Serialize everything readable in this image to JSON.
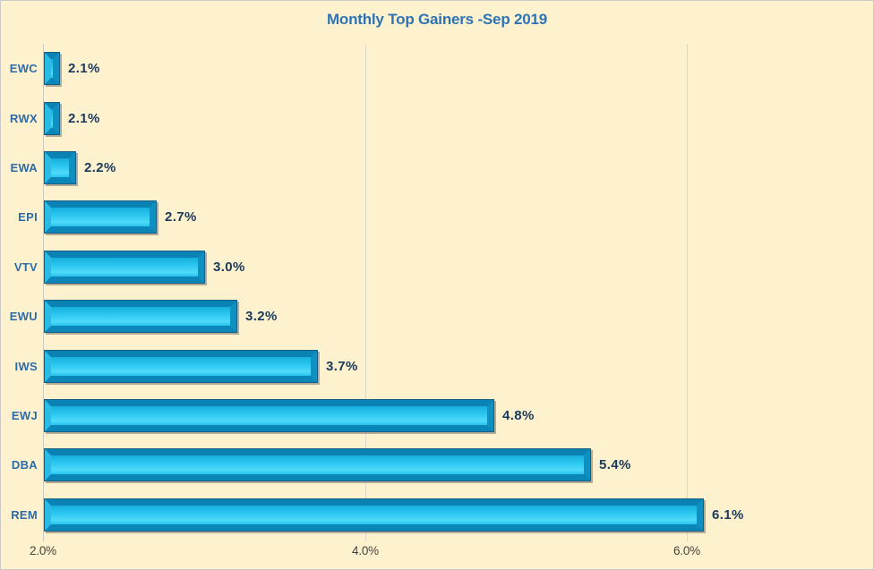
{
  "chart_data": {
    "type": "bar",
    "orientation": "horizontal",
    "title": "Monthly Top Gainers -Sep 2019",
    "categories": [
      "EWC",
      "RWX",
      "EWA",
      "EPI",
      "VTV",
      "EWU",
      "IWS",
      "EWJ",
      "DBA",
      "REM"
    ],
    "values": [
      2.1,
      2.1,
      2.2,
      2.7,
      3.0,
      3.2,
      3.7,
      4.8,
      5.4,
      6.1
    ],
    "value_labels": [
      "2.1%",
      "2.1%",
      "2.2%",
      "2.7%",
      "3.0%",
      "3.2%",
      "3.7%",
      "4.8%",
      "5.4%",
      "6.1%"
    ],
    "xlabel": "",
    "ylabel": "",
    "x_axis": {
      "min": 2.0,
      "ticks": [
        2.0,
        4.0,
        6.0
      ],
      "tick_labels": [
        "2.0%",
        "4.0%",
        "6.0%"
      ]
    },
    "grid": "vertical-gridlines-at-ticks",
    "legend": "none",
    "bar_order_top_to_bottom": "ascending values"
  },
  "colors": {
    "background": "#FDF1CE",
    "canvas_border": "#C9C9C9",
    "title_text": "#2E74B5",
    "category_text": "#2E6CA8",
    "value_text": "#1A3A5C",
    "tick_text": "#45423A",
    "gridline": "#DDD8CA",
    "axis_line": "#CCC8BB",
    "bar_outline": "#155E86",
    "bar_frame_top": "#0A82B4",
    "bar_frame_bottom": "#0B86B8",
    "bar_frame_left": "#2BBCE6",
    "bar_frame_right": "#0E90C0",
    "bar_center_1": "#17AEDD",
    "bar_center_2": "#2FC9F2",
    "bar_center_3": "#4FDAF9",
    "bar_center_4": "#27C3EE",
    "bar_shadow": "rgba(90,88,78,0.45)"
  }
}
